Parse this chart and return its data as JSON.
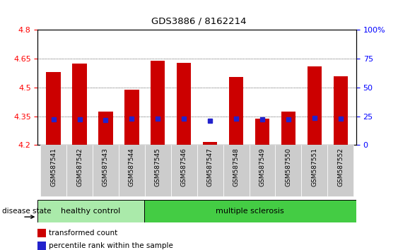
{
  "title": "GDS3886 / 8162214",
  "samples": [
    "GSM587541",
    "GSM587542",
    "GSM587543",
    "GSM587544",
    "GSM587545",
    "GSM587546",
    "GSM587547",
    "GSM587548",
    "GSM587549",
    "GSM587550",
    "GSM587551",
    "GSM587552"
  ],
  "red_values": [
    4.58,
    4.625,
    4.375,
    4.49,
    4.638,
    4.628,
    4.215,
    4.555,
    4.338,
    4.375,
    4.61,
    4.56
  ],
  "blue_values": [
    4.335,
    4.335,
    4.33,
    4.337,
    4.338,
    4.336,
    4.328,
    4.337,
    4.333,
    4.332,
    4.34,
    4.338
  ],
  "y_min": 4.2,
  "y_max": 4.8,
  "y_ticks_left": [
    4.2,
    4.35,
    4.5,
    4.65,
    4.8
  ],
  "y_ticks_right_vals": [
    0,
    25,
    50,
    75,
    100
  ],
  "y_ticks_right_labels": [
    "0",
    "25",
    "50",
    "75",
    "100%"
  ],
  "bar_color": "#cc0000",
  "blue_color": "#2222cc",
  "healthy_samples": 4,
  "healthy_label": "healthy control",
  "ms_label": "multiple sclerosis",
  "healthy_color": "#aaeaaa",
  "ms_color": "#44cc44",
  "disease_label": "disease state",
  "legend_red": "transformed count",
  "legend_blue": "percentile rank within the sample",
  "bar_width": 0.55,
  "base_value": 4.2,
  "grid_lines": [
    4.35,
    4.5,
    4.65
  ],
  "xlabel_bg_color": "#cccccc"
}
